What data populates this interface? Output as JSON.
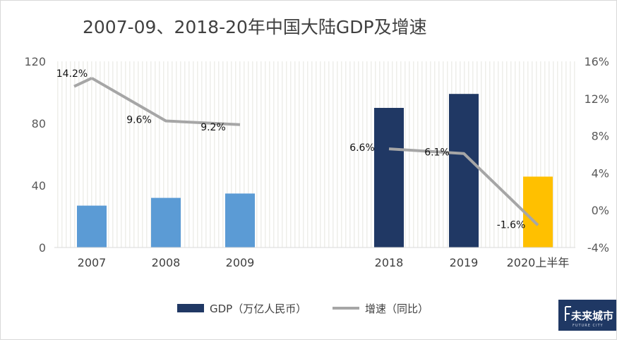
{
  "chart_data": {
    "type": "bar",
    "title": "2007-09、2018-20年中国大陆GDP及增速",
    "categories": [
      "2007",
      "2008",
      "2009",
      "2018",
      "2019",
      "2020上半年"
    ],
    "series": [
      {
        "name": "GDP（万亿人民币）",
        "type": "bar",
        "axis": "left",
        "values": [
          27,
          32,
          34.8,
          90,
          99,
          45.7
        ],
        "colors": [
          "#5b9bd5",
          "#5b9bd5",
          "#5b9bd5",
          "#203864",
          "#203864",
          "#ffc000"
        ]
      },
      {
        "name": "增速（同比）",
        "type": "line",
        "axis": "right",
        "values": [
          14.2,
          9.6,
          9.2,
          6.6,
          6.1,
          -1.6
        ],
        "labels": [
          "14.2%",
          "9.6%",
          "9.2%",
          "6.6%",
          "6.1%",
          "-1.6%"
        ],
        "color": "#a6a6a6"
      }
    ],
    "left_axis": {
      "range": [
        0,
        120
      ],
      "ticks": [
        "0",
        "40",
        "80",
        "120"
      ]
    },
    "right_axis": {
      "range": [
        -4,
        16
      ],
      "ticks": [
        "-4%",
        "0%",
        "4%",
        "8%",
        "12%",
        "16%"
      ]
    },
    "legend_position": "bottom"
  },
  "logo": {
    "text": "未来城市",
    "subtext": "FUTURE CITY",
    "color": "#1f3864"
  }
}
